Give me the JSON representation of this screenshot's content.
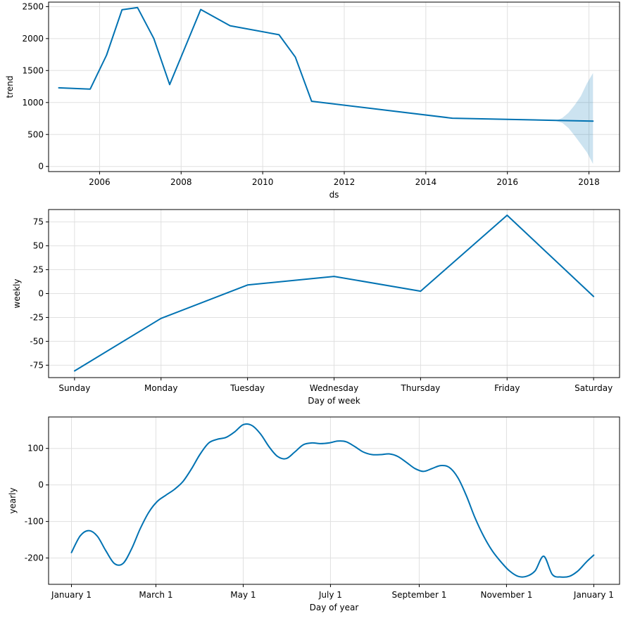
{
  "colors": {
    "line": "#0072B2",
    "band": "#0072B2",
    "grid": "#e0e0e0"
  },
  "chart_data": [
    {
      "type": "line",
      "name": "trend-panel",
      "xlabel": "ds",
      "ylabel": "trend",
      "xlim": [
        2004.75,
        2018.75
      ],
      "ylim": [
        -80,
        2570
      ],
      "grid": true,
      "x_ticks": [
        2006,
        2008,
        2010,
        2012,
        2014,
        2016,
        2018
      ],
      "x_tick_labels": [
        "2006",
        "2008",
        "2010",
        "2012",
        "2014",
        "2016",
        "2018"
      ],
      "y_ticks": [
        0,
        500,
        1000,
        1500,
        2000,
        2500
      ],
      "y_tick_labels": [
        "0",
        "500",
        "1000",
        "1500",
        "2000",
        "2500"
      ],
      "series": [
        {
          "x": [
            2005.0,
            2005.77,
            2006.17,
            2006.55,
            2006.93,
            2007.33,
            2007.72,
            2008.48,
            2009.2,
            2010.4,
            2010.8,
            2011.2,
            2014.65,
            2017.2,
            2018.1
          ],
          "values": [
            1230,
            1210,
            1740,
            2450,
            2485,
            2000,
            1280,
            2455,
            2200,
            2060,
            1710,
            1020,
            755,
            720,
            710
          ]
        }
      ],
      "uncertainty_band": {
        "x": [
          2017.2,
          2017.35,
          2017.5,
          2017.65,
          2017.8,
          2017.95,
          2018.1
        ],
        "lower": [
          710,
          680,
          600,
          480,
          350,
          220,
          40
        ],
        "upper": [
          720,
          760,
          840,
          960,
          1100,
          1300,
          1460
        ]
      }
    },
    {
      "type": "line",
      "name": "weekly-panel",
      "xlabel": "Day of week",
      "ylabel": "weekly",
      "xlim": [
        -0.3,
        6.3
      ],
      "ylim": [
        -88,
        88
      ],
      "grid": true,
      "categories": [
        "Sunday",
        "Monday",
        "Tuesday",
        "Wednesday",
        "Thursday",
        "Friday",
        "Saturday"
      ],
      "y_ticks": [
        -75,
        -50,
        -25,
        0,
        25,
        50,
        75
      ],
      "y_tick_labels": [
        "-75",
        "-50",
        "-25",
        "0",
        "25",
        "50",
        "75"
      ],
      "series": [
        {
          "values": [
            -81,
            -26,
            9,
            18,
            2.5,
            82,
            -3
          ]
        }
      ]
    },
    {
      "type": "line",
      "name": "yearly-panel",
      "xlabel": "Day of year",
      "ylabel": "yearly",
      "xlim": [
        -16,
        383
      ],
      "ylim": [
        -272,
        186
      ],
      "grid": true,
      "x_ticks": [
        0,
        59,
        120,
        181,
        243,
        304,
        365
      ],
      "x_tick_labels": [
        "January 1",
        "March 1",
        "May 1",
        "July 1",
        "September 1",
        "November 1",
        "January 1"
      ],
      "y_ticks": [
        -200,
        -100,
        0,
        100
      ],
      "y_tick_labels": [
        "-200",
        "-100",
        "0",
        "100"
      ],
      "series": [
        {
          "x": [
            0,
            6,
            12,
            18,
            24,
            30,
            36,
            42,
            48,
            54,
            60,
            66,
            72,
            78,
            84,
            90,
            96,
            102,
            108,
            114,
            120,
            126,
            132,
            138,
            144,
            150,
            156,
            162,
            168,
            174,
            180,
            186,
            192,
            198,
            204,
            210,
            216,
            222,
            228,
            234,
            240,
            246,
            252,
            258,
            264,
            270,
            276,
            282,
            288,
            294,
            300,
            306,
            312,
            318,
            324,
            330,
            336,
            342,
            348,
            354,
            360,
            365
          ],
          "values": [
            -185,
            -140,
            -125,
            -140,
            -180,
            -215,
            -215,
            -175,
            -120,
            -75,
            -45,
            -28,
            -12,
            10,
            45,
            85,
            115,
            125,
            130,
            145,
            165,
            163,
            140,
            105,
            78,
            72,
            90,
            110,
            115,
            113,
            115,
            120,
            118,
            105,
            90,
            83,
            83,
            85,
            78,
            62,
            45,
            37,
            45,
            53,
            48,
            20,
            -30,
            -90,
            -140,
            -180,
            -210,
            -235,
            -250,
            -250,
            -235,
            -195,
            -195,
            -195,
            -195,
            -195,
            -195,
            -195
          ]
        }
      ]
    }
  ]
}
